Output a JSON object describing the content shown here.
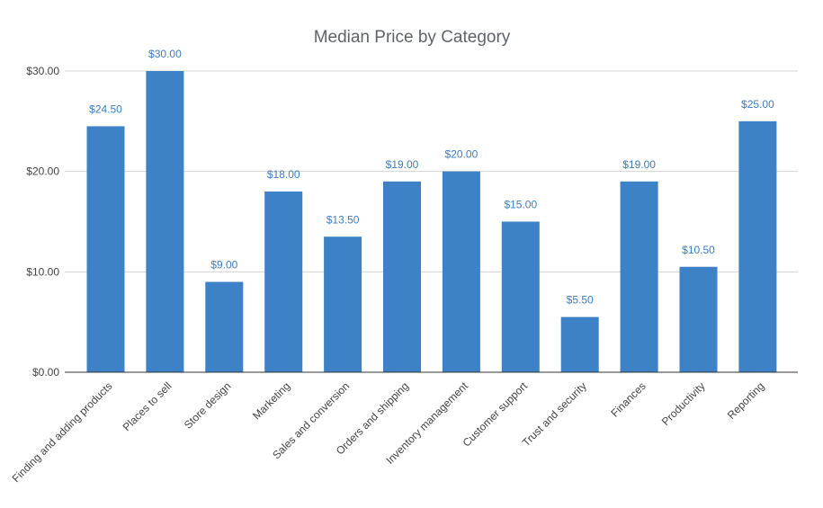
{
  "chart_data": {
    "type": "bar",
    "title": "Median Price by Category",
    "categories": [
      "Finding and adding products",
      "Places to sell",
      "Store design",
      "Marketing",
      "Sales and conversion",
      "Orders and shipping",
      "Inventory management",
      "Customer support",
      "Trust and security",
      "Finances",
      "Productivity",
      "Reporting"
    ],
    "values": [
      24.5,
      30.0,
      9.0,
      18.0,
      13.5,
      19.0,
      20.0,
      15.0,
      5.5,
      19.0,
      10.5,
      25.0
    ],
    "data_labels": [
      "$24.50",
      "$30.00",
      "$9.00",
      "$18.00",
      "$13.50",
      "$19.00",
      "$20.00",
      "$15.00",
      "$5.50",
      "$19.00",
      "$10.50",
      "$25.00"
    ],
    "y_ticks": [
      0,
      10,
      20,
      30
    ],
    "y_tick_labels": [
      "$0.00",
      "$10.00",
      "$20.00",
      "$30.00"
    ],
    "ylim": [
      0,
      30
    ],
    "grid": true,
    "legend": "none",
    "bar_color": "#3d82c6",
    "label_color": "#3c7ec0"
  }
}
